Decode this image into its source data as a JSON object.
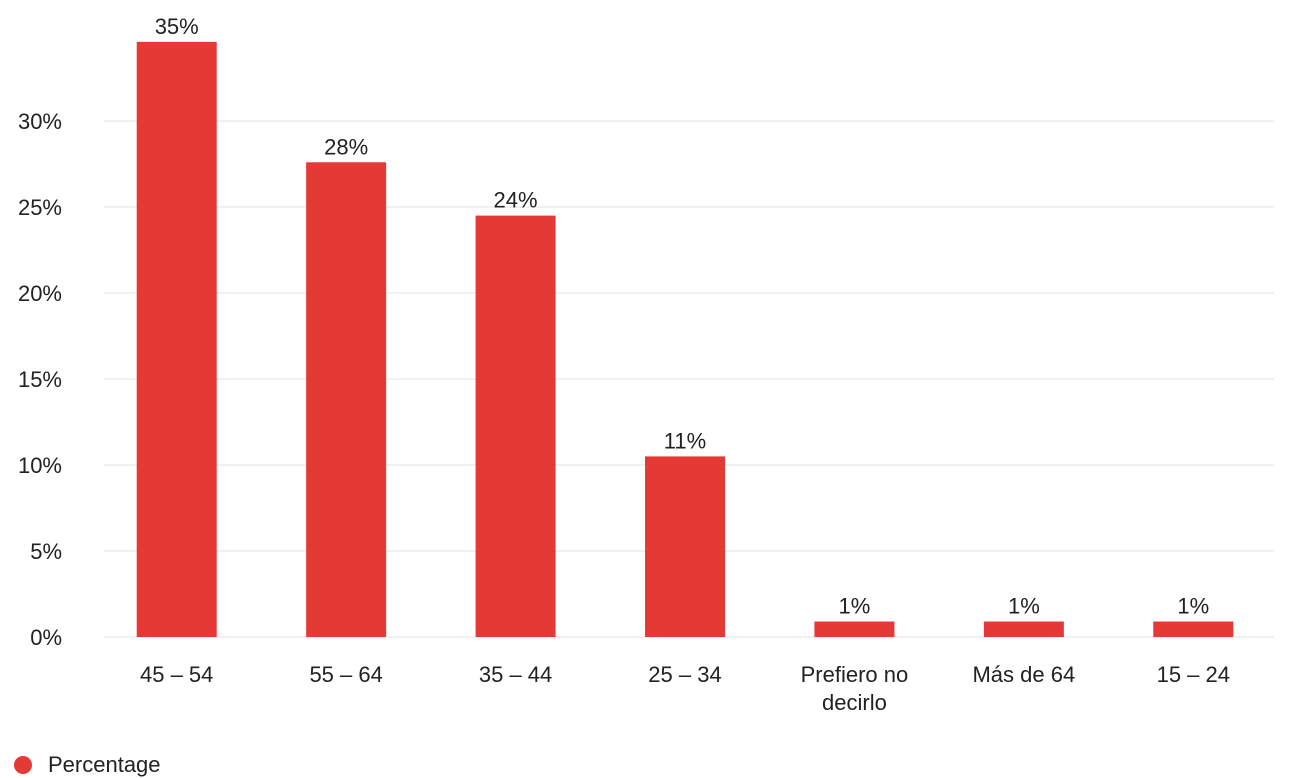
{
  "colors": {
    "bar": "#e53935",
    "grid": "#e0e0e0",
    "text": "#222222"
  },
  "chart_data": {
    "type": "bar",
    "title": "",
    "xlabel": "",
    "ylabel": "",
    "categories": [
      [
        "45 – 54"
      ],
      [
        "55 – 64"
      ],
      [
        "35 – 44"
      ],
      [
        "25 – 34"
      ],
      [
        "Prefiero no",
        "decirlo"
      ],
      [
        "Más de 64"
      ],
      [
        "15 – 24"
      ]
    ],
    "series": [
      {
        "name": "Percentage",
        "values": [
          34.6,
          27.6,
          24.5,
          10.5,
          0.9,
          0.9,
          0.9
        ]
      }
    ],
    "data_labels": [
      "35%",
      "28%",
      "24%",
      "11%",
      "1%",
      "1%",
      "1%"
    ],
    "y_ticks": [
      0,
      5,
      10,
      15,
      20,
      25,
      30
    ],
    "y_tick_labels": [
      "0%",
      "5%",
      "10%",
      "15%",
      "20%",
      "25%",
      "30%"
    ],
    "ylim": [
      0,
      35
    ],
    "grid": true,
    "legend_position": "bottom-left"
  }
}
